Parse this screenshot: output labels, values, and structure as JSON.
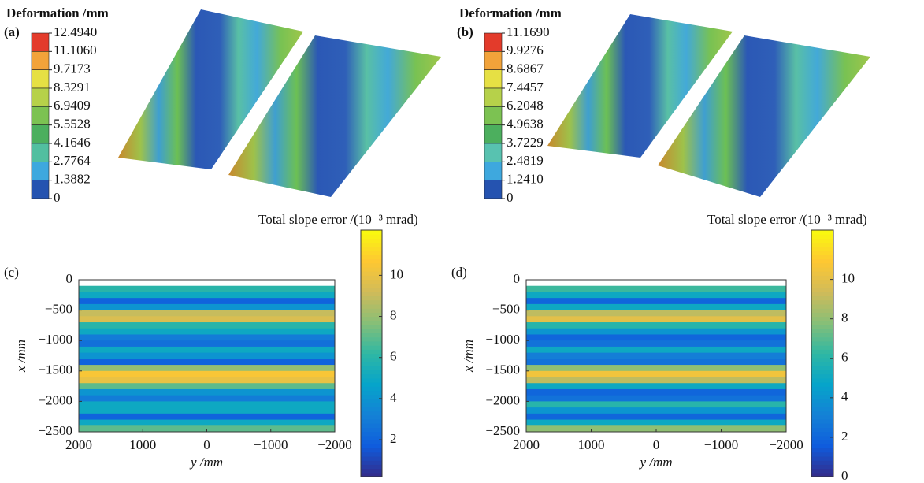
{
  "chart_data": [
    {
      "type": "surface",
      "panel": "(a)",
      "title": "Deformation /mm",
      "legend_ticks": [
        {
          "value": 12.494,
          "label": "12.4940"
        },
        {
          "value": 11.106,
          "label": "11.1060"
        },
        9.7173,
        8.3291,
        6.9409,
        5.5528,
        4.1646,
        2.7764,
        1.3882,
        0
      ],
      "colors": [
        "#e33b2b",
        "#f2a33a",
        "#e6e044",
        "#b6d14a",
        "#7cc252",
        "#4caf5e",
        "#52bfa0",
        "#3ea8de",
        "#2553b0"
      ]
    },
    {
      "type": "surface",
      "panel": "(b)",
      "title": "Deformation /mm",
      "legend_ticks": [
        {
          "value": 11.169,
          "label": "11.1690"
        },
        9.9276,
        8.6867,
        7.4457,
        6.2048,
        4.9638,
        3.7229,
        2.4819,
        {
          "value": 1.241,
          "label": "1.2410"
        },
        0
      ],
      "colors": [
        "#e33b2b",
        "#f2a33a",
        "#e6e044",
        "#b6d14a",
        "#7cc252",
        "#4caf5e",
        "#58c2b0",
        "#3ea8de",
        "#2553b0"
      ]
    },
    {
      "type": "heatmap",
      "panel": "(c)",
      "colorbar_title": "Total slope error /(10⁻³ mrad)",
      "xlabel": "y /mm",
      "ylabel": "x /mm",
      "xlim": [
        2000,
        -2000
      ],
      "xticks": [
        2000,
        1000,
        0,
        {
          "value": -1000,
          "label": "−1000"
        },
        {
          "value": -2000,
          "label": "−2000"
        }
      ],
      "ylim": [
        0,
        -2500
      ],
      "yticks": [
        0,
        {
          "value": -500,
          "label": "−500"
        },
        {
          "value": -1000,
          "label": "−1000"
        },
        {
          "value": -1500,
          "label": "−1500"
        },
        {
          "value": -2000,
          "label": "−2000"
        },
        {
          "value": -2500,
          "label": "−2500"
        }
      ],
      "rows": [
        -150,
        -250,
        -350,
        -450,
        -550,
        -650,
        -750,
        -850,
        -950,
        -1050,
        -1150,
        -1250,
        -1350,
        -1450,
        -1550,
        -1650,
        -1750,
        -1850,
        -1950,
        -2050,
        -2150,
        -2250,
        -2350,
        -2450
      ],
      "values": [
        6,
        5,
        2,
        4,
        9,
        9.5,
        6,
        5,
        3,
        2.5,
        5,
        4,
        2,
        8,
        10.5,
        10,
        7,
        4,
        3,
        5,
        5,
        2,
        5,
        7
      ],
      "clim": [
        0.2,
        12.2
      ],
      "cticks": [
        2,
        4,
        6,
        8,
        10
      ]
    },
    {
      "type": "heatmap",
      "panel": "(d)",
      "colorbar_title": "Total slope error /(10⁻³ mrad)",
      "xlabel": "y /mm",
      "ylabel": "x /mm",
      "xlim": [
        2000,
        -2000
      ],
      "xticks": [
        2000,
        1000,
        0,
        {
          "value": -1000,
          "label": "−1000"
        },
        {
          "value": -2000,
          "label": "−2000"
        }
      ],
      "ylim": [
        0,
        -2500
      ],
      "yticks": [
        0,
        {
          "value": -500,
          "label": "−500"
        },
        {
          "value": -1000,
          "label": "−1000"
        },
        {
          "value": -1500,
          "label": "−1500"
        },
        {
          "value": -2000,
          "label": "−2000"
        },
        {
          "value": -2500,
          "label": "−2500"
        }
      ],
      "rows": [
        -150,
        -250,
        -350,
        -450,
        -550,
        -650,
        -750,
        -850,
        -950,
        -1050,
        -1150,
        -1250,
        -1350,
        -1450,
        -1550,
        -1650,
        -1750,
        -1850,
        -1950,
        -2050,
        -2150,
        -2250,
        -2350,
        -2450
      ],
      "values": [
        6.5,
        5,
        2,
        5,
        9,
        10,
        6,
        4,
        2,
        2.5,
        5,
        3,
        2.5,
        8,
        10.5,
        9,
        5,
        2,
        2.5,
        6,
        4,
        2,
        5,
        8
      ],
      "clim": [
        0,
        12.5
      ],
      "cticks": [
        0,
        2,
        4,
        6,
        8,
        10
      ]
    }
  ]
}
